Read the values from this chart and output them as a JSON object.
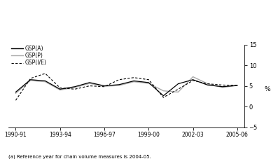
{
  "x_labels": [
    "1990-91",
    "1993-94",
    "1996-97",
    "1999-00",
    "2002-03",
    "2005-06"
  ],
  "x_ticks_pos": [
    0,
    3,
    6,
    9,
    12,
    15
  ],
  "gsp_a": [
    3.5,
    6.5,
    6.2,
    4.2,
    4.8,
    5.8,
    5.0,
    5.3,
    6.2,
    5.8,
    2.6,
    5.5,
    6.5,
    5.2,
    4.8,
    5.1
  ],
  "gsp_p": [
    3.2,
    6.3,
    6.0,
    4.0,
    4.6,
    5.6,
    4.9,
    5.1,
    6.0,
    5.6,
    3.8,
    3.5,
    7.2,
    5.5,
    4.6,
    5.1
  ],
  "gsp_ife": [
    1.5,
    6.8,
    8.0,
    4.5,
    4.2,
    5.0,
    4.8,
    6.5,
    7.0,
    6.5,
    2.2,
    4.2,
    6.3,
    5.5,
    5.2,
    5.1
  ],
  "ylim": [
    -5,
    15
  ],
  "yticks": [
    -5,
    0,
    5,
    10,
    15
  ],
  "ylabel": "%",
  "footnote": "(a) Reference year for chain volume measures is 2004-05.",
  "color_a": "#000000",
  "color_p": "#aaaaaa",
  "color_ife": "#000000",
  "legend_labels": [
    "GSP(A)",
    "GSP(P)",
    "GSP(I/E)"
  ]
}
